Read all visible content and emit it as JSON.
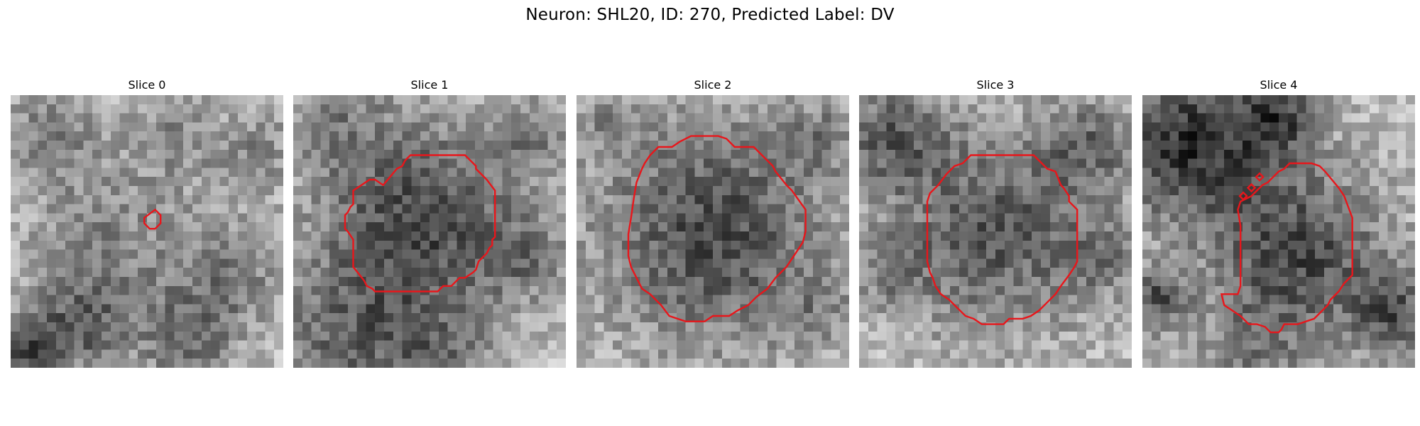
{
  "figure": {
    "title": "Neuron: SHL20, ID: 270, Predicted Label: DV"
  },
  "contour_color": "#e8161b",
  "slices": [
    {
      "title": "Slice 0",
      "seed": 11,
      "dark_blobs": [
        [
          0.15,
          0.15,
          0.12,
          0.25
        ],
        [
          0.6,
          0.15,
          0.12,
          0.2
        ],
        [
          0.9,
          0.2,
          0.1,
          0.2
        ],
        [
          0.35,
          0.55,
          0.2,
          0.22
        ],
        [
          0.8,
          0.65,
          0.15,
          0.25
        ],
        [
          0.25,
          0.85,
          0.12,
          0.35
        ],
        [
          0.65,
          0.9,
          0.12,
          0.3
        ],
        [
          0.05,
          0.95,
          0.08,
          0.4
        ]
      ],
      "contour": [
        [
          0.49,
          0.45
        ],
        [
          0.53,
          0.42
        ],
        [
          0.55,
          0.44
        ],
        [
          0.55,
          0.47
        ],
        [
          0.53,
          0.49
        ],
        [
          0.51,
          0.49
        ],
        [
          0.49,
          0.47
        ]
      ]
    },
    {
      "title": "Slice 1",
      "seed": 23,
      "dark_blobs": [
        [
          0.47,
          0.47,
          0.27,
          0.45
        ],
        [
          0.15,
          0.1,
          0.12,
          0.2
        ],
        [
          0.88,
          0.15,
          0.1,
          0.2
        ],
        [
          0.2,
          0.92,
          0.2,
          0.3
        ],
        [
          0.85,
          0.6,
          0.1,
          0.2
        ],
        [
          0.55,
          0.95,
          0.12,
          0.2
        ]
      ],
      "contour": [
        [
          0.33,
          0.33
        ],
        [
          0.38,
          0.27
        ],
        [
          0.4,
          0.26
        ],
        [
          0.41,
          0.24
        ],
        [
          0.43,
          0.22
        ],
        [
          0.63,
          0.22
        ],
        [
          0.67,
          0.26
        ],
        [
          0.67,
          0.27
        ],
        [
          0.71,
          0.31
        ],
        [
          0.74,
          0.35
        ],
        [
          0.74,
          0.52
        ],
        [
          0.73,
          0.53
        ],
        [
          0.73,
          0.55
        ],
        [
          0.72,
          0.56
        ],
        [
          0.71,
          0.58
        ],
        [
          0.68,
          0.61
        ],
        [
          0.67,
          0.64
        ],
        [
          0.66,
          0.65
        ],
        [
          0.63,
          0.67
        ],
        [
          0.61,
          0.67
        ],
        [
          0.58,
          0.7
        ],
        [
          0.55,
          0.7
        ],
        [
          0.53,
          0.72
        ],
        [
          0.3,
          0.72
        ],
        [
          0.29,
          0.71
        ],
        [
          0.27,
          0.7
        ],
        [
          0.26,
          0.68
        ],
        [
          0.22,
          0.63
        ],
        [
          0.22,
          0.53
        ],
        [
          0.2,
          0.5
        ],
        [
          0.19,
          0.49
        ],
        [
          0.19,
          0.44
        ],
        [
          0.2,
          0.43
        ],
        [
          0.21,
          0.41
        ],
        [
          0.22,
          0.4
        ],
        [
          0.22,
          0.35
        ],
        [
          0.25,
          0.33
        ],
        [
          0.28,
          0.31
        ],
        [
          0.3,
          0.31
        ]
      ]
    },
    {
      "title": "Slice 2",
      "seed": 37,
      "dark_blobs": [
        [
          0.5,
          0.5,
          0.29,
          0.45
        ],
        [
          0.9,
          0.15,
          0.1,
          0.2
        ],
        [
          0.1,
          0.1,
          0.1,
          0.15
        ],
        [
          0.88,
          0.8,
          0.1,
          0.15
        ]
      ],
      "contour": [
        [
          0.3,
          0.19
        ],
        [
          0.35,
          0.19
        ],
        [
          0.38,
          0.17
        ],
        [
          0.4,
          0.16
        ],
        [
          0.42,
          0.15
        ],
        [
          0.47,
          0.15
        ],
        [
          0.52,
          0.15
        ],
        [
          0.55,
          0.16
        ],
        [
          0.58,
          0.19
        ],
        [
          0.65,
          0.19
        ],
        [
          0.72,
          0.26
        ],
        [
          0.73,
          0.28
        ],
        [
          0.77,
          0.33
        ],
        [
          0.79,
          0.35
        ],
        [
          0.84,
          0.42
        ],
        [
          0.84,
          0.5
        ],
        [
          0.83,
          0.54
        ],
        [
          0.79,
          0.6
        ],
        [
          0.77,
          0.63
        ],
        [
          0.75,
          0.65
        ],
        [
          0.73,
          0.67
        ],
        [
          0.7,
          0.71
        ],
        [
          0.66,
          0.74
        ],
        [
          0.63,
          0.77
        ],
        [
          0.59,
          0.79
        ],
        [
          0.56,
          0.81
        ],
        [
          0.5,
          0.81
        ],
        [
          0.47,
          0.83
        ],
        [
          0.4,
          0.83
        ],
        [
          0.34,
          0.81
        ],
        [
          0.31,
          0.77
        ],
        [
          0.27,
          0.73
        ],
        [
          0.24,
          0.71
        ],
        [
          0.22,
          0.67
        ],
        [
          0.21,
          0.65
        ],
        [
          0.2,
          0.63
        ],
        [
          0.19,
          0.59
        ],
        [
          0.19,
          0.51
        ],
        [
          0.2,
          0.45
        ],
        [
          0.21,
          0.38
        ],
        [
          0.22,
          0.32
        ],
        [
          0.24,
          0.27
        ],
        [
          0.25,
          0.25
        ],
        [
          0.27,
          0.22
        ]
      ]
    },
    {
      "title": "Slice 3",
      "seed": 51,
      "dark_blobs": [
        [
          0.5,
          0.5,
          0.26,
          0.4
        ],
        [
          0.12,
          0.15,
          0.14,
          0.35
        ],
        [
          0.85,
          0.18,
          0.12,
          0.3
        ],
        [
          0.12,
          0.65,
          0.1,
          0.2
        ],
        [
          0.9,
          0.6,
          0.1,
          0.2
        ]
      ],
      "contour": [
        [
          0.41,
          0.22
        ],
        [
          0.5,
          0.22
        ],
        [
          0.58,
          0.22
        ],
        [
          0.64,
          0.22
        ],
        [
          0.67,
          0.25
        ],
        [
          0.69,
          0.27
        ],
        [
          0.72,
          0.28
        ],
        [
          0.74,
          0.33
        ],
        [
          0.75,
          0.34
        ],
        [
          0.77,
          0.37
        ],
        [
          0.77,
          0.39
        ],
        [
          0.8,
          0.42
        ],
        [
          0.8,
          0.55
        ],
        [
          0.8,
          0.61
        ],
        [
          0.79,
          0.63
        ],
        [
          0.77,
          0.66
        ],
        [
          0.74,
          0.7
        ],
        [
          0.72,
          0.73
        ],
        [
          0.69,
          0.76
        ],
        [
          0.66,
          0.79
        ],
        [
          0.63,
          0.81
        ],
        [
          0.6,
          0.82
        ],
        [
          0.55,
          0.82
        ],
        [
          0.53,
          0.84
        ],
        [
          0.48,
          0.84
        ],
        [
          0.45,
          0.84
        ],
        [
          0.42,
          0.82
        ],
        [
          0.39,
          0.81
        ],
        [
          0.36,
          0.78
        ],
        [
          0.33,
          0.75
        ],
        [
          0.3,
          0.73
        ],
        [
          0.28,
          0.7
        ],
        [
          0.27,
          0.67
        ],
        [
          0.26,
          0.65
        ],
        [
          0.25,
          0.61
        ],
        [
          0.25,
          0.5
        ],
        [
          0.25,
          0.39
        ],
        [
          0.26,
          0.36
        ],
        [
          0.29,
          0.33
        ],
        [
          0.32,
          0.29
        ],
        [
          0.35,
          0.26
        ],
        [
          0.38,
          0.25
        ]
      ]
    },
    {
      "title": "Slice 4",
      "seed": 67,
      "dark_blobs": [
        [
          0.18,
          0.18,
          0.2,
          0.55
        ],
        [
          0.5,
          0.08,
          0.1,
          0.4
        ],
        [
          0.58,
          0.58,
          0.22,
          0.45
        ],
        [
          0.05,
          0.75,
          0.08,
          0.4
        ],
        [
          0.92,
          0.8,
          0.1,
          0.4
        ],
        [
          0.4,
          0.95,
          0.15,
          0.2
        ]
      ],
      "contour": [
        [
          0.4,
          0.37
        ],
        [
          0.42,
          0.35
        ],
        [
          0.44,
          0.33
        ],
        [
          0.46,
          0.32
        ],
        [
          0.48,
          0.3
        ],
        [
          0.5,
          0.28
        ],
        [
          0.52,
          0.27
        ],
        [
          0.54,
          0.25
        ],
        [
          0.62,
          0.25
        ],
        [
          0.65,
          0.26
        ],
        [
          0.67,
          0.28
        ],
        [
          0.72,
          0.34
        ],
        [
          0.74,
          0.37
        ],
        [
          0.77,
          0.45
        ],
        [
          0.77,
          0.66
        ],
        [
          0.74,
          0.69
        ],
        [
          0.72,
          0.72
        ],
        [
          0.69,
          0.75
        ],
        [
          0.68,
          0.77
        ],
        [
          0.63,
          0.82
        ],
        [
          0.6,
          0.83
        ],
        [
          0.57,
          0.84
        ],
        [
          0.52,
          0.84
        ],
        [
          0.51,
          0.86
        ],
        [
          0.5,
          0.87
        ],
        [
          0.47,
          0.87
        ],
        [
          0.45,
          0.85
        ],
        [
          0.42,
          0.84
        ],
        [
          0.39,
          0.84
        ],
        [
          0.36,
          0.81
        ],
        [
          0.33,
          0.79
        ],
        [
          0.3,
          0.77
        ],
        [
          0.29,
          0.73
        ],
        [
          0.35,
          0.73
        ],
        [
          0.36,
          0.7
        ],
        [
          0.36,
          0.48
        ],
        [
          0.35,
          0.42
        ],
        [
          0.36,
          0.39
        ]
      ],
      "extra_markers": [
        [
          0.37,
          0.37
        ],
        [
          0.4,
          0.34
        ],
        [
          0.43,
          0.3
        ]
      ]
    }
  ]
}
